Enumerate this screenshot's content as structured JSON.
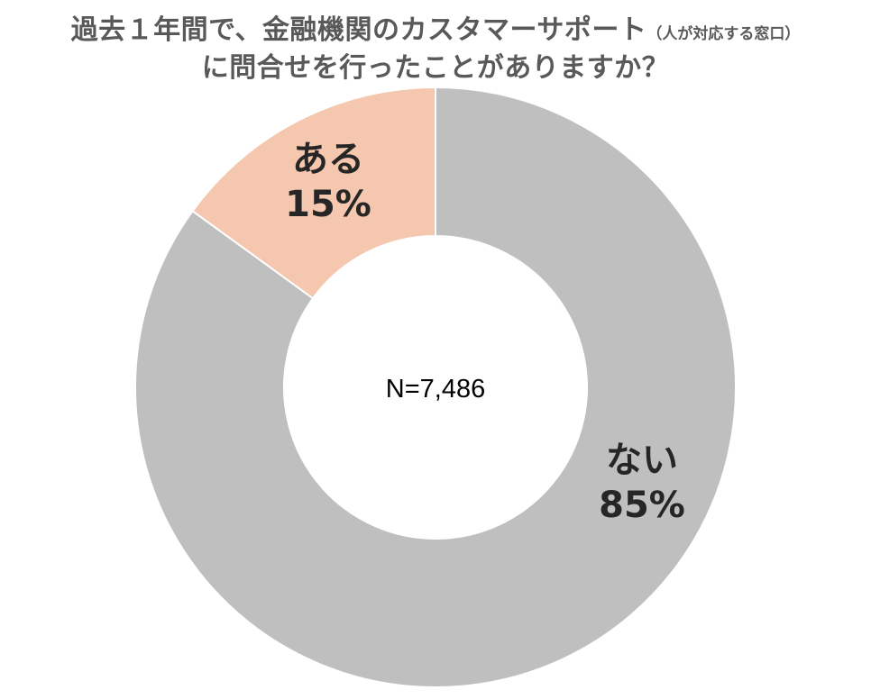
{
  "title": {
    "line1": "過去１年間で、金融機関のカスタマーサポート",
    "line1_note": "（人が対応する窓口）",
    "line2": "に問合せを行ったことがありますか？"
  },
  "chart_data": {
    "type": "pie",
    "variant": "donut",
    "center_label": "N=7,486",
    "slices": [
      {
        "label": "ない",
        "percent_label": "85%",
        "value": 85,
        "color": "#bfbfbf"
      },
      {
        "label": "ある",
        "percent_label": "15%",
        "value": 15,
        "color": "#f4c7ae"
      }
    ],
    "start": "12 o'clock, clockwise",
    "legend": "none"
  }
}
